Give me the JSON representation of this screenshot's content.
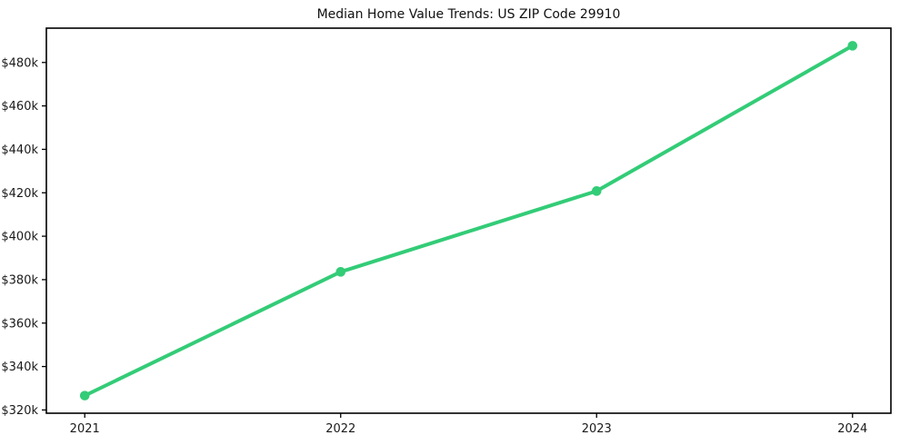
{
  "figure": {
    "background": "#ffffff"
  },
  "chart_data": {
    "type": "line",
    "title": "Median Home Value Trends: US ZIP Code 29910",
    "categories": [
      "2021",
      "2022",
      "2023",
      "2024"
    ],
    "x": [
      2021,
      2022,
      2023,
      2024
    ],
    "series": [
      {
        "values": [
          326600,
          383600,
          420800,
          487700
        ]
      }
    ],
    "xlabel": "",
    "ylabel": "",
    "xlim": [
      2020.85,
      2024.15
    ],
    "ylim": [
      318500,
      495800
    ],
    "x_ticks": [
      2021,
      2022,
      2023,
      2024
    ],
    "x_tick_labels": [
      "2021",
      "2022",
      "2023",
      "2024"
    ],
    "y_ticks": [
      320000,
      340000,
      360000,
      380000,
      400000,
      420000,
      440000,
      460000,
      480000
    ],
    "y_tick_labels": [
      "$320k",
      "$340k",
      "$360k",
      "$380k",
      "$400k",
      "$420k",
      "$440k",
      "$460k",
      "$480k"
    ],
    "grid": false,
    "legend": "none",
    "styles": {
      "line_color": "#33cc77",
      "line_width": 4,
      "marker_radius": 5.3,
      "axis_color": "#000000",
      "tick_label_color": "#1a1a1a",
      "title_color": "#111111"
    }
  }
}
